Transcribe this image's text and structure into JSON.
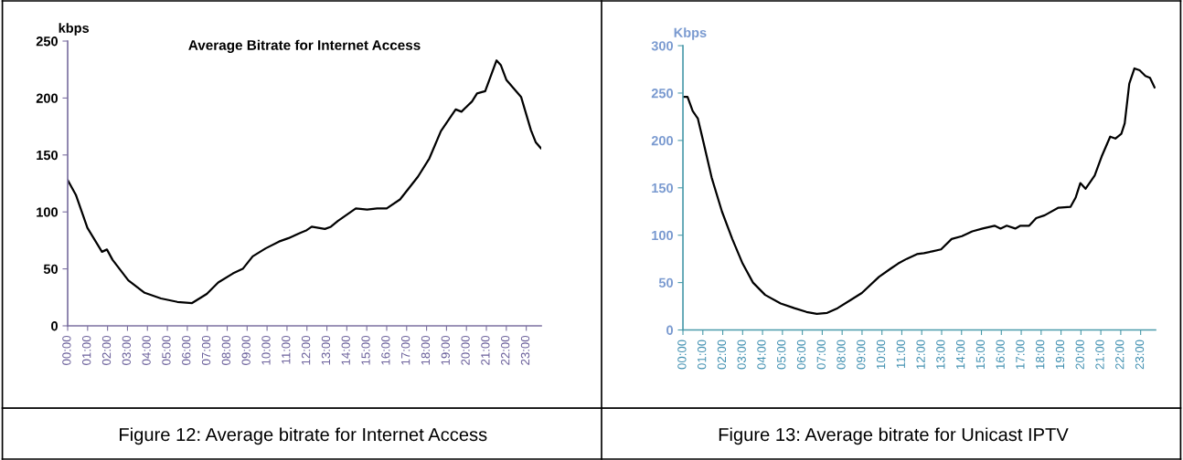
{
  "chart_data": [
    {
      "type": "line",
      "title": "Average Bitrate for Internet Access",
      "ylabel": "kbps",
      "annotations": [
        "Figure 12: Average bitrate for Internet Access"
      ],
      "series": [
        {
          "color": "#000000",
          "x": [
            0,
            0.41,
            0.99,
            1.72,
            1.97,
            2.25,
            3.04,
            3.86,
            4.68,
            5.5,
            6.24,
            6.98,
            7.55,
            8.29,
            8.78,
            9.28,
            9.93,
            10.6,
            11.08,
            11.58,
            11.99,
            12.24,
            12.9,
            13.2,
            13.55,
            14.45,
            15.02,
            15.52,
            16.0,
            16.67,
            17.57,
            18.14,
            18.72,
            19.46,
            19.75,
            20.28,
            20.53,
            20.94,
            21.51,
            21.72,
            22.0,
            22.74,
            23.23,
            23.48,
            23.73
          ],
          "values": [
            128,
            115,
            86,
            65,
            67,
            58,
            40,
            29,
            24,
            21,
            20,
            28,
            38,
            46,
            50,
            61,
            68,
            74,
            77,
            81,
            84,
            87,
            85,
            87,
            92,
            103,
            102,
            103,
            103,
            111,
            131,
            147,
            171,
            190,
            188,
            197,
            204,
            206,
            233,
            229,
            216,
            201,
            172,
            161,
            156
          ]
        }
      ],
      "xlim": [
        0,
        23.75
      ],
      "ylim": [
        0,
        250
      ],
      "yticks": [
        0,
        50,
        100,
        150,
        200,
        250
      ],
      "grid": false,
      "xticks": [
        {
          "value": 0,
          "label": "00:00"
        },
        {
          "value": 1,
          "label": "01:00"
        },
        {
          "value": 2,
          "label": "02:00"
        },
        {
          "value": 3,
          "label": "03:00"
        },
        {
          "value": 4,
          "label": "04:00"
        },
        {
          "value": 5,
          "label": "05:00"
        },
        {
          "value": 6,
          "label": "06:00"
        },
        {
          "value": 7,
          "label": "07:00"
        },
        {
          "value": 8,
          "label": "08:00"
        },
        {
          "value": 9,
          "label": "09:00"
        },
        {
          "value": 10,
          "label": "10:00"
        },
        {
          "value": 11,
          "label": "11:00"
        },
        {
          "value": 12,
          "label": "12:00"
        },
        {
          "value": 13,
          "label": "13:00"
        },
        {
          "value": 14,
          "label": "14:00"
        },
        {
          "value": 15,
          "label": "15:00"
        },
        {
          "value": 16,
          "label": "16:00"
        },
        {
          "value": 17,
          "label": "17:00"
        },
        {
          "value": 18,
          "label": "18:00"
        },
        {
          "value": 19,
          "label": "19:00"
        },
        {
          "value": 20,
          "label": "20:00"
        },
        {
          "value": 21,
          "label": "21:00"
        },
        {
          "value": 22,
          "label": "22:00"
        },
        {
          "value": 23,
          "label": "23:00"
        }
      ],
      "marker": "none",
      "line_style": "solid"
    },
    {
      "type": "line",
      "ylabel": "Kbps",
      "annotations": [
        "Figure 13: Average bitrate for Unicast IPTV"
      ],
      "series": [
        {
          "color": "#000000",
          "x": [
            0,
            0.23,
            0.49,
            0.75,
            1.01,
            1.44,
            1.96,
            2.48,
            3.0,
            3.52,
            4.13,
            4.91,
            5.6,
            6.21,
            6.73,
            7.25,
            7.77,
            8.46,
            8.99,
            9.85,
            10.46,
            10.81,
            11.24,
            11.76,
            12.11,
            12.54,
            12.97,
            13.5,
            14.02,
            14.54,
            15.06,
            15.66,
            15.96,
            16.27,
            16.7,
            16.96,
            17.4,
            17.75,
            18.18,
            18.87,
            19.48,
            19.74,
            19.97,
            20.23,
            20.69,
            21.04,
            21.47,
            21.73,
            22.03,
            22.2,
            22.43,
            22.69,
            22.95,
            23.24,
            23.47,
            23.7
          ],
          "values": [
            246,
            246,
            231,
            223,
            200,
            161,
            125,
            96,
            70,
            50,
            37,
            28,
            23,
            19,
            17,
            18,
            23,
            32,
            39,
            56,
            65,
            70,
            75,
            80,
            81,
            83,
            85,
            96,
            99,
            104,
            107,
            110,
            107,
            110,
            107,
            110,
            110,
            118,
            121,
            129,
            130,
            140,
            155,
            149,
            163,
            183,
            204,
            202,
            207,
            218,
            260,
            276,
            274,
            268,
            266,
            256
          ]
        }
      ],
      "xlim": [
        0,
        23.75
      ],
      "ylim": [
        0,
        300
      ],
      "yticks": [
        0,
        50,
        100,
        150,
        200,
        250,
        300
      ],
      "xticks": [
        {
          "value": 0,
          "label": "00:00"
        },
        {
          "value": 1,
          "label": "01:00"
        },
        {
          "value": 2,
          "label": "02:00"
        },
        {
          "value": 3,
          "label": "03:00"
        },
        {
          "value": 4,
          "label": "04:00"
        },
        {
          "value": 5,
          "label": "05:00"
        },
        {
          "value": 6,
          "label": "06:00"
        },
        {
          "value": 7,
          "label": "07:00"
        },
        {
          "value": 8,
          "label": "08:00"
        },
        {
          "value": 9,
          "label": "09:00"
        },
        {
          "value": 10,
          "label": "10:00"
        },
        {
          "value": 11,
          "label": "11:00"
        },
        {
          "value": 12,
          "label": "12:00"
        },
        {
          "value": 13,
          "label": "13:00"
        },
        {
          "value": 14,
          "label": "14:00"
        },
        {
          "value": 15,
          "label": "15:00"
        },
        {
          "value": 16,
          "label": "16:00"
        },
        {
          "value": 17,
          "label": "17:00"
        },
        {
          "value": 18,
          "label": "18:00"
        },
        {
          "value": 19,
          "label": "19:00"
        },
        {
          "value": 20,
          "label": "20:00"
        },
        {
          "value": 21,
          "label": "21:00"
        },
        {
          "value": 22,
          "label": "22:00"
        },
        {
          "value": 23,
          "label": "23:00"
        }
      ],
      "grid": false,
      "marker": "none",
      "line_style": "solid"
    }
  ]
}
